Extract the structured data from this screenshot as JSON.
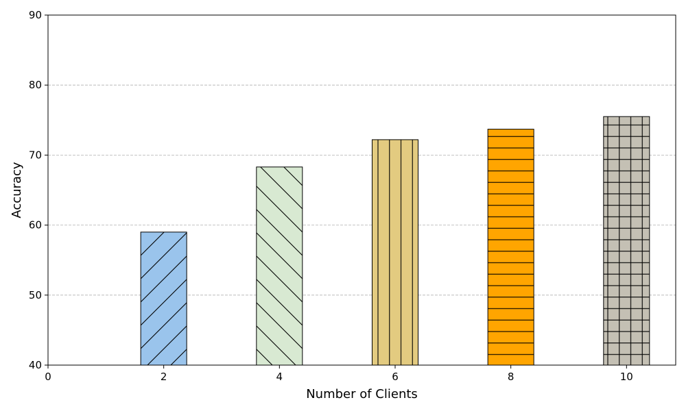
{
  "chart_data": {
    "type": "bar",
    "x": [
      2,
      4,
      6,
      8,
      10
    ],
    "values": [
      59.0,
      68.3,
      72.2,
      73.7,
      75.5
    ],
    "xlabel": "Number of Clients",
    "ylabel": "Accuracy",
    "xlim": [
      0,
      10.85
    ],
    "ylim": [
      40,
      90
    ],
    "xticks": [
      0,
      2,
      4,
      6,
      8,
      10
    ],
    "yticks": [
      40,
      50,
      60,
      70,
      80,
      90
    ],
    "grid": "y-dashed",
    "bar_colors": [
      "#9ac4ec",
      "#d8e9d2",
      "#e3cb80",
      "#ffa500",
      "#c4c0b4"
    ],
    "bar_hatches": [
      "diagonal-up",
      "diagonal-down",
      "vertical",
      "horizontal",
      "grid"
    ]
  }
}
